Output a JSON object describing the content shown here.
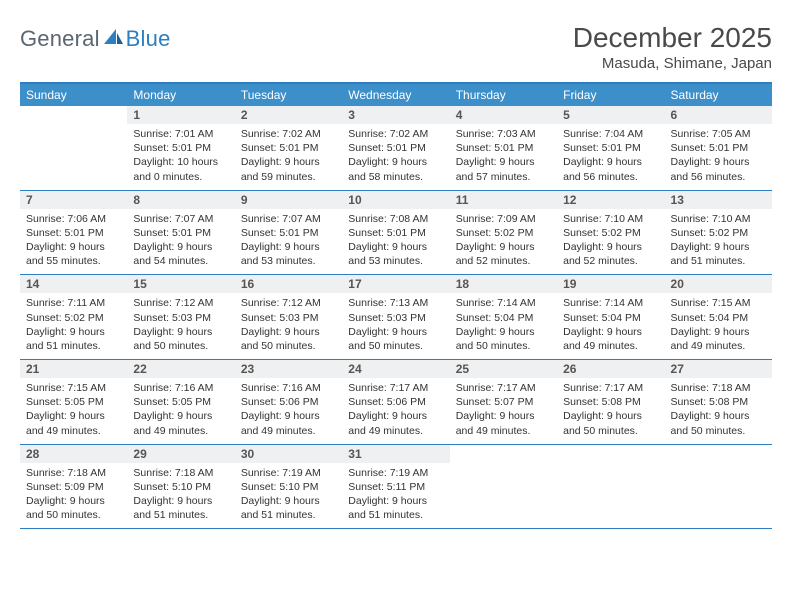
{
  "logo": {
    "text1": "General",
    "text2": "Blue"
  },
  "title": "December 2025",
  "location": "Masuda, Shimane, Japan",
  "colors": {
    "header_bar": "#3d8fc9",
    "rule": "#2d7fc1",
    "daynum_bg": "#eef0f2",
    "text": "#333333",
    "logo_gray": "#5b6670",
    "logo_blue": "#2d7fc1"
  },
  "weekdays": [
    "Sunday",
    "Monday",
    "Tuesday",
    "Wednesday",
    "Thursday",
    "Friday",
    "Saturday"
  ],
  "weeks": [
    [
      {
        "n": "",
        "lines": []
      },
      {
        "n": "1",
        "lines": [
          "Sunrise: 7:01 AM",
          "Sunset: 5:01 PM",
          "Daylight: 10 hours",
          "and 0 minutes."
        ]
      },
      {
        "n": "2",
        "lines": [
          "Sunrise: 7:02 AM",
          "Sunset: 5:01 PM",
          "Daylight: 9 hours",
          "and 59 minutes."
        ]
      },
      {
        "n": "3",
        "lines": [
          "Sunrise: 7:02 AM",
          "Sunset: 5:01 PM",
          "Daylight: 9 hours",
          "and 58 minutes."
        ]
      },
      {
        "n": "4",
        "lines": [
          "Sunrise: 7:03 AM",
          "Sunset: 5:01 PM",
          "Daylight: 9 hours",
          "and 57 minutes."
        ]
      },
      {
        "n": "5",
        "lines": [
          "Sunrise: 7:04 AM",
          "Sunset: 5:01 PM",
          "Daylight: 9 hours",
          "and 56 minutes."
        ]
      },
      {
        "n": "6",
        "lines": [
          "Sunrise: 7:05 AM",
          "Sunset: 5:01 PM",
          "Daylight: 9 hours",
          "and 56 minutes."
        ]
      }
    ],
    [
      {
        "n": "7",
        "lines": [
          "Sunrise: 7:06 AM",
          "Sunset: 5:01 PM",
          "Daylight: 9 hours",
          "and 55 minutes."
        ]
      },
      {
        "n": "8",
        "lines": [
          "Sunrise: 7:07 AM",
          "Sunset: 5:01 PM",
          "Daylight: 9 hours",
          "and 54 minutes."
        ]
      },
      {
        "n": "9",
        "lines": [
          "Sunrise: 7:07 AM",
          "Sunset: 5:01 PM",
          "Daylight: 9 hours",
          "and 53 minutes."
        ]
      },
      {
        "n": "10",
        "lines": [
          "Sunrise: 7:08 AM",
          "Sunset: 5:01 PM",
          "Daylight: 9 hours",
          "and 53 minutes."
        ]
      },
      {
        "n": "11",
        "lines": [
          "Sunrise: 7:09 AM",
          "Sunset: 5:02 PM",
          "Daylight: 9 hours",
          "and 52 minutes."
        ]
      },
      {
        "n": "12",
        "lines": [
          "Sunrise: 7:10 AM",
          "Sunset: 5:02 PM",
          "Daylight: 9 hours",
          "and 52 minutes."
        ]
      },
      {
        "n": "13",
        "lines": [
          "Sunrise: 7:10 AM",
          "Sunset: 5:02 PM",
          "Daylight: 9 hours",
          "and 51 minutes."
        ]
      }
    ],
    [
      {
        "n": "14",
        "lines": [
          "Sunrise: 7:11 AM",
          "Sunset: 5:02 PM",
          "Daylight: 9 hours",
          "and 51 minutes."
        ]
      },
      {
        "n": "15",
        "lines": [
          "Sunrise: 7:12 AM",
          "Sunset: 5:03 PM",
          "Daylight: 9 hours",
          "and 50 minutes."
        ]
      },
      {
        "n": "16",
        "lines": [
          "Sunrise: 7:12 AM",
          "Sunset: 5:03 PM",
          "Daylight: 9 hours",
          "and 50 minutes."
        ]
      },
      {
        "n": "17",
        "lines": [
          "Sunrise: 7:13 AM",
          "Sunset: 5:03 PM",
          "Daylight: 9 hours",
          "and 50 minutes."
        ]
      },
      {
        "n": "18",
        "lines": [
          "Sunrise: 7:14 AM",
          "Sunset: 5:04 PM",
          "Daylight: 9 hours",
          "and 50 minutes."
        ]
      },
      {
        "n": "19",
        "lines": [
          "Sunrise: 7:14 AM",
          "Sunset: 5:04 PM",
          "Daylight: 9 hours",
          "and 49 minutes."
        ]
      },
      {
        "n": "20",
        "lines": [
          "Sunrise: 7:15 AM",
          "Sunset: 5:04 PM",
          "Daylight: 9 hours",
          "and 49 minutes."
        ]
      }
    ],
    [
      {
        "n": "21",
        "lines": [
          "Sunrise: 7:15 AM",
          "Sunset: 5:05 PM",
          "Daylight: 9 hours",
          "and 49 minutes."
        ]
      },
      {
        "n": "22",
        "lines": [
          "Sunrise: 7:16 AM",
          "Sunset: 5:05 PM",
          "Daylight: 9 hours",
          "and 49 minutes."
        ]
      },
      {
        "n": "23",
        "lines": [
          "Sunrise: 7:16 AM",
          "Sunset: 5:06 PM",
          "Daylight: 9 hours",
          "and 49 minutes."
        ]
      },
      {
        "n": "24",
        "lines": [
          "Sunrise: 7:17 AM",
          "Sunset: 5:06 PM",
          "Daylight: 9 hours",
          "and 49 minutes."
        ]
      },
      {
        "n": "25",
        "lines": [
          "Sunrise: 7:17 AM",
          "Sunset: 5:07 PM",
          "Daylight: 9 hours",
          "and 49 minutes."
        ]
      },
      {
        "n": "26",
        "lines": [
          "Sunrise: 7:17 AM",
          "Sunset: 5:08 PM",
          "Daylight: 9 hours",
          "and 50 minutes."
        ]
      },
      {
        "n": "27",
        "lines": [
          "Sunrise: 7:18 AM",
          "Sunset: 5:08 PM",
          "Daylight: 9 hours",
          "and 50 minutes."
        ]
      }
    ],
    [
      {
        "n": "28",
        "lines": [
          "Sunrise: 7:18 AM",
          "Sunset: 5:09 PM",
          "Daylight: 9 hours",
          "and 50 minutes."
        ]
      },
      {
        "n": "29",
        "lines": [
          "Sunrise: 7:18 AM",
          "Sunset: 5:10 PM",
          "Daylight: 9 hours",
          "and 51 minutes."
        ]
      },
      {
        "n": "30",
        "lines": [
          "Sunrise: 7:19 AM",
          "Sunset: 5:10 PM",
          "Daylight: 9 hours",
          "and 51 minutes."
        ]
      },
      {
        "n": "31",
        "lines": [
          "Sunrise: 7:19 AM",
          "Sunset: 5:11 PM",
          "Daylight: 9 hours",
          "and 51 minutes."
        ]
      },
      {
        "n": "",
        "lines": []
      },
      {
        "n": "",
        "lines": []
      },
      {
        "n": "",
        "lines": []
      }
    ]
  ]
}
